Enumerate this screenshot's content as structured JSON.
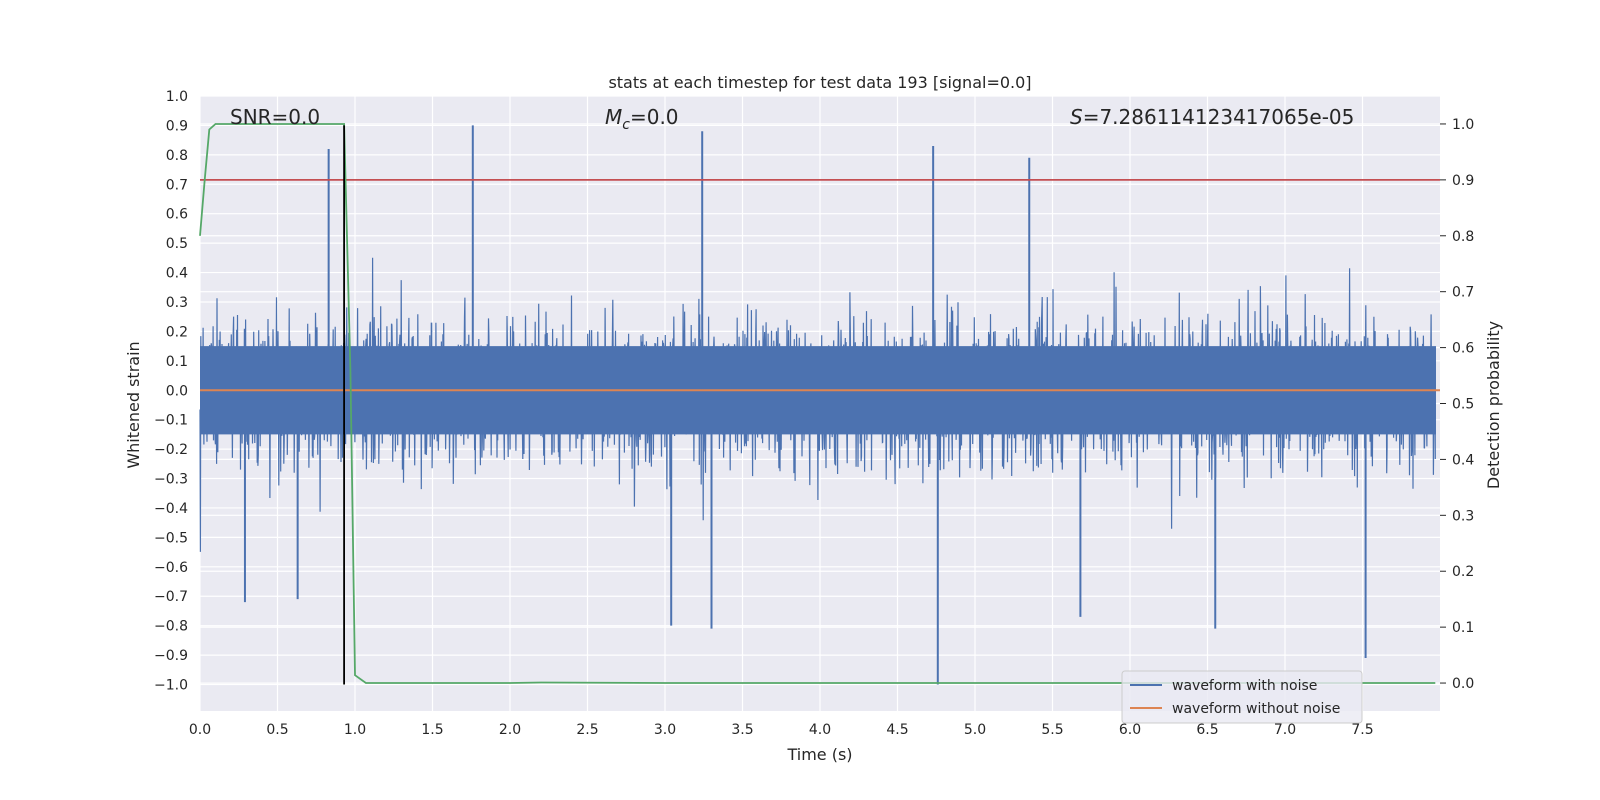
{
  "chart_data": {
    "type": "line",
    "title": "stats at each timestep for test data 193 [signal=0.0]",
    "xlabel": "Time (s)",
    "ylabel_left": "Whitened strain",
    "ylabel_right": "Detection probability",
    "xlim": [
      0.0,
      8.0
    ],
    "ylim_left": [
      -1.09,
      1.0
    ],
    "ylim_right": [
      -0.05,
      1.05
    ],
    "x_ticks": [
      "0.0",
      "0.5",
      "1.0",
      "1.5",
      "2.0",
      "2.5",
      "3.0",
      "3.5",
      "4.0",
      "4.5",
      "5.0",
      "5.5",
      "6.0",
      "6.5",
      "7.0",
      "7.5"
    ],
    "y_ticks_left": [
      "1.0",
      "0.9",
      "0.8",
      "0.7",
      "0.6",
      "0.5",
      "0.4",
      "0.3",
      "0.2",
      "0.1",
      "0.0",
      "−0.1",
      "−0.2",
      "−0.3",
      "−0.4",
      "−0.5",
      "−0.6",
      "−0.7",
      "−0.8",
      "−0.9",
      "−1.0"
    ],
    "y_ticks_right": [
      "1.0",
      "0.9",
      "0.8",
      "0.7",
      "0.6",
      "0.5",
      "0.4",
      "0.3",
      "0.2",
      "0.1",
      "0.0"
    ],
    "grid": true,
    "legend_position": "lower-right",
    "annotations": {
      "snr": "SNR=0.0",
      "mc_symbol": "M",
      "mc_sub": "c",
      "mc_value": "=0.0",
      "s_symbol": "S",
      "s_value": "=7.286114123417065e-05"
    },
    "series": [
      {
        "name": "waveform with noise",
        "axis": "left",
        "color": "#4c72b0",
        "description_range": [
          -1.0,
          0.9
        ],
        "typical_envelope": [
          -0.35,
          0.35
        ],
        "peaks": [
          {
            "x": 0.83,
            "y": 0.82
          },
          {
            "x": 1.76,
            "y": 0.9
          },
          {
            "x": 3.24,
            "y": 0.88
          },
          {
            "x": 4.73,
            "y": 0.83
          },
          {
            "x": 5.35,
            "y": 0.79
          },
          {
            "x": 4.76,
            "y": -1.0
          },
          {
            "x": 3.04,
            "y": -0.8
          },
          {
            "x": 3.3,
            "y": -0.81
          },
          {
            "x": 5.68,
            "y": -0.77
          },
          {
            "x": 6.55,
            "y": -0.81
          },
          {
            "x": 7.52,
            "y": -0.91
          },
          {
            "x": 0.29,
            "y": -0.72
          },
          {
            "x": 0.63,
            "y": -0.71
          }
        ]
      },
      {
        "name": "waveform without noise",
        "axis": "left",
        "color": "#dd8452",
        "x": [
          0.0,
          8.0
        ],
        "y": [
          0.0,
          0.0
        ]
      },
      {
        "axis": "right",
        "color": "#55a868",
        "x": [
          0.0,
          0.03,
          0.06,
          0.1,
          0.2,
          0.4,
          0.6,
          0.8,
          0.93,
          0.97,
          1.0,
          1.07,
          2.0,
          2.2,
          3.0,
          5.0,
          7.0,
          7.97
        ],
        "y": [
          0.8,
          0.9,
          0.99,
          1.0,
          1.0,
          1.0,
          1.0,
          1.0,
          1.0,
          0.56,
          0.014,
          0.0,
          0.0,
          0.001,
          0.0,
          0.0,
          0.0,
          0.0
        ]
      },
      {
        "axis": "right",
        "color": "#c44e52",
        "x": [
          0.0,
          8.0
        ],
        "y": [
          0.9,
          0.9
        ]
      },
      {
        "axis": "left",
        "color": "#000000",
        "x": [
          0.93,
          0.93
        ],
        "y": [
          -1.0,
          0.9
        ]
      }
    ]
  }
}
